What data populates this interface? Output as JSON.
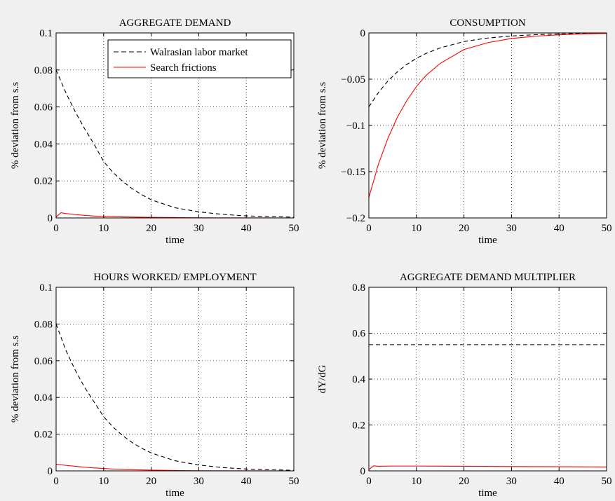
{
  "chart_data": [
    {
      "type": "line",
      "title": "AGGREGATE DEMAND",
      "xlabel": "time",
      "ylabel": "% deviation from s.s",
      "xlim": [
        0,
        50
      ],
      "ylim": [
        0,
        0.1
      ],
      "xticks": [
        0,
        10,
        20,
        30,
        40,
        50
      ],
      "yticks": [
        0,
        0.02,
        0.04,
        0.06,
        0.08,
        0.1
      ],
      "ytick_labels": [
        "0",
        "0.02",
        "0.04",
        "0.06",
        "0.08",
        "0.1"
      ],
      "grid": true,
      "legend": {
        "placement": "top-right",
        "entries": [
          {
            "label": "Walrasian labor market",
            "style": "dashed",
            "color": "#000000"
          },
          {
            "label": "Search frictions",
            "style": "solid",
            "color": "#ff0000"
          }
        ]
      },
      "series": [
        {
          "style": "dashed",
          "color": "#000000",
          "x": [
            0,
            2,
            4,
            6,
            8,
            10,
            12,
            14,
            16,
            18,
            20,
            25,
            30,
            35,
            40,
            45,
            50
          ],
          "values": [
            0.08,
            0.068,
            0.0575,
            0.0482,
            0.0398,
            0.0305,
            0.0245,
            0.0198,
            0.0158,
            0.0126,
            0.0098,
            0.0055,
            0.0033,
            0.0019,
            0.0011,
            0.0007,
            0.0004
          ]
        },
        {
          "style": "solid",
          "color": "#ff0000",
          "x": [
            0,
            1,
            2,
            4,
            6,
            8,
            10,
            15,
            20,
            25,
            30,
            40,
            50
          ],
          "values": [
            0.0005,
            0.0028,
            0.0024,
            0.0018,
            0.0014,
            0.001,
            0.0008,
            0.0005,
            0.0003,
            0.0002,
            0.0001,
            5e-05,
            0.0
          ]
        }
      ]
    },
    {
      "type": "line",
      "title": "CONSUMPTION",
      "xlabel": "time",
      "ylabel": "% deviation from s.s",
      "xlim": [
        0,
        50
      ],
      "ylim": [
        -0.2,
        0
      ],
      "xticks": [
        0,
        10,
        20,
        30,
        40,
        50
      ],
      "yticks": [
        -0.2,
        -0.15,
        -0.1,
        -0.05,
        0
      ],
      "ytick_labels": [
        "−0.2",
        "−0.15",
        "−0.1",
        "−0.05",
        "0"
      ],
      "grid": true,
      "series": [
        {
          "style": "dashed",
          "color": "#000000",
          "x": [
            0,
            2,
            4,
            6,
            8,
            10,
            12,
            15,
            20,
            25,
            30,
            35,
            40,
            45,
            50
          ],
          "values": [
            -0.08,
            -0.0645,
            -0.052,
            -0.042,
            -0.034,
            -0.0275,
            -0.0222,
            -0.0162,
            -0.0093,
            -0.0055,
            -0.0033,
            -0.0019,
            -0.0011,
            -0.0006,
            -0.0003
          ]
        },
        {
          "style": "solid",
          "color": "#ff0000",
          "x": [
            0,
            2,
            4,
            6,
            8,
            10,
            12,
            15,
            20,
            25,
            30,
            35,
            40,
            45,
            50
          ],
          "values": [
            -0.178,
            -0.142,
            -0.114,
            -0.091,
            -0.073,
            -0.058,
            -0.046,
            -0.033,
            -0.018,
            -0.0105,
            -0.006,
            -0.0035,
            -0.002,
            -0.001,
            -0.0005
          ]
        }
      ]
    },
    {
      "type": "line",
      "title": "HOURS WORKED/ EMPLOYMENT",
      "xlabel": "time",
      "ylabel": "% deviation from s.s",
      "xlim": [
        0,
        50
      ],
      "ylim": [
        0,
        0.1
      ],
      "xticks": [
        0,
        10,
        20,
        30,
        40,
        50
      ],
      "yticks": [
        0,
        0.02,
        0.04,
        0.06,
        0.08,
        0.1
      ],
      "ytick_labels": [
        "0",
        "0.02",
        "0.04",
        "0.06",
        "0.08",
        "0.1"
      ],
      "grid": true,
      "series": [
        {
          "style": "dashed",
          "color": "#000000",
          "x": [
            0,
            2,
            4,
            6,
            8,
            10,
            12,
            14,
            16,
            18,
            20,
            25,
            30,
            35,
            40,
            45,
            50
          ],
          "values": [
            0.08,
            0.066,
            0.055,
            0.0455,
            0.0375,
            0.0295,
            0.0238,
            0.0192,
            0.0154,
            0.0123,
            0.0098,
            0.0055,
            0.0032,
            0.0018,
            0.001,
            0.0006,
            0.0003
          ]
        },
        {
          "style": "solid",
          "color": "#ff0000",
          "x": [
            0,
            2,
            4,
            6,
            8,
            10,
            12,
            15,
            20,
            25,
            30,
            40,
            50
          ],
          "values": [
            0.0036,
            0.003,
            0.0025,
            0.002,
            0.0016,
            0.0013,
            0.001,
            0.0007,
            0.0004,
            0.0002,
            0.0001,
            5e-05,
            0.0
          ]
        }
      ]
    },
    {
      "type": "line",
      "title": "AGGREGATE DEMAND MULTIPLIER",
      "xlabel": "time",
      "ylabel": "dY/dG",
      "xlim": [
        0,
        50
      ],
      "ylim": [
        0,
        0.8
      ],
      "xticks": [
        0,
        10,
        20,
        30,
        40,
        50
      ],
      "yticks": [
        0,
        0.2,
        0.4,
        0.6,
        0.8
      ],
      "ytick_labels": [
        "0",
        "0.2",
        "0.4",
        "0.6",
        "0.8"
      ],
      "grid": true,
      "series": [
        {
          "style": "dashed",
          "color": "#000000",
          "x": [
            0,
            10,
            20,
            30,
            40,
            50
          ],
          "values": [
            0.55,
            0.55,
            0.55,
            0.55,
            0.55,
            0.55
          ]
        },
        {
          "style": "solid",
          "color": "#ff0000",
          "x": [
            0,
            1,
            2,
            5,
            10,
            20,
            30,
            40,
            50
          ],
          "values": [
            0.005,
            0.022,
            0.02,
            0.021,
            0.021,
            0.02,
            0.019,
            0.018,
            0.017
          ]
        }
      ]
    }
  ]
}
